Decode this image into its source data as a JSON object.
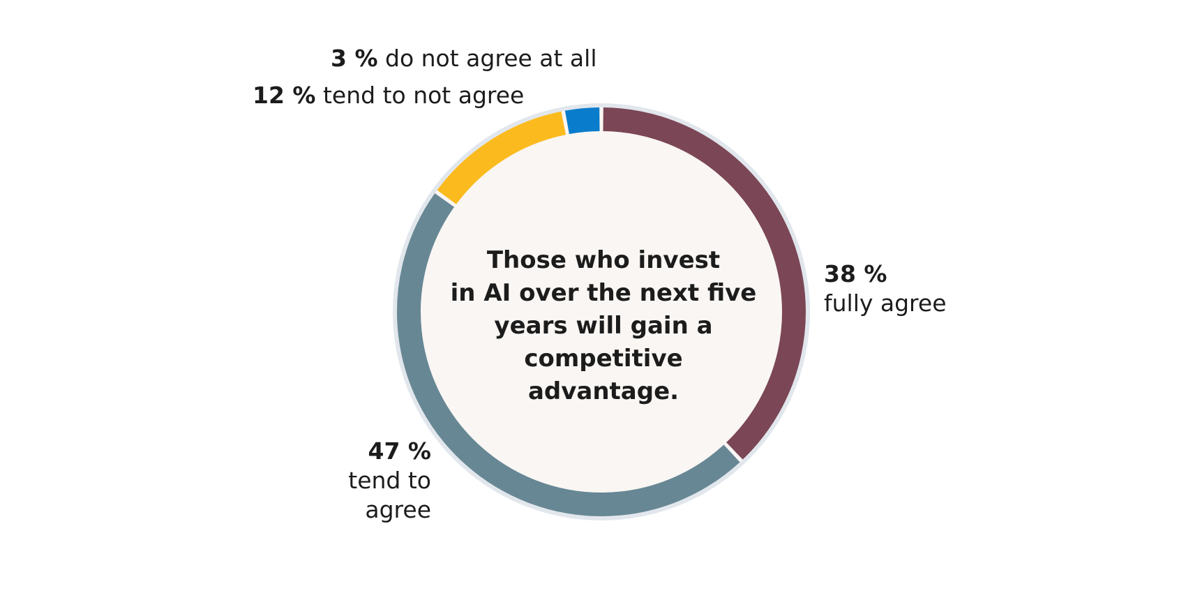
{
  "chart_data": {
    "type": "pie",
    "donut": true,
    "title_lines": [
      "Those who invest",
      "in AI over the next five",
      "years will gain a",
      "competitive advantage."
    ],
    "slices": [
      {
        "percent_label": "38 %",
        "label_lines": [
          "fully agree"
        ],
        "value": 38,
        "color": "#7b4656"
      },
      {
        "percent_label": "47 %",
        "label_lines": [
          "tend to",
          "agree"
        ],
        "value": 47,
        "color": "#678794"
      },
      {
        "percent_label": "12 %",
        "label_lines": [
          "tend to not agree"
        ],
        "value": 12,
        "color": "#fbbb1e"
      },
      {
        "percent_label": "3 %",
        "label_lines": [
          "do not agree at all"
        ],
        "value": 3,
        "color": "#0a7ccc"
      }
    ],
    "center_fill": "#f9f6f3",
    "ring_outline": "#e1e7ec"
  }
}
